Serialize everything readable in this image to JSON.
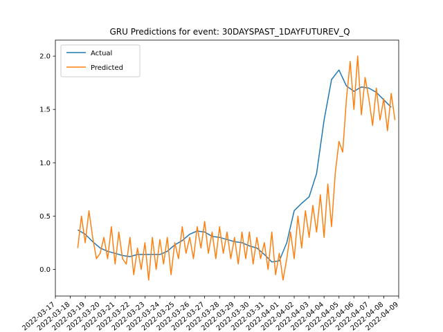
{
  "chart_data": {
    "type": "line",
    "title": "GRU Predictions for event: 30DAYSPAST_1DAYFUTUREV_Q",
    "xlabel": "",
    "ylabel": "",
    "xlim": [
      "2022-03-17T00:00",
      "2022-04-09T00:00"
    ],
    "ylim": [
      -0.25,
      2.15
    ],
    "x_ticks": [
      "2022-03-17",
      "2022-03-18",
      "2022-03-19",
      "2022-03-20",
      "2022-03-21",
      "2022-03-22",
      "2022-03-23",
      "2022-03-24",
      "2022-03-25",
      "2022-03-26",
      "2022-03-27",
      "2022-03-28",
      "2022-03-29",
      "2022-03-30",
      "2022-03-31",
      "2022-04-01",
      "2022-04-02",
      "2022-04-03",
      "2022-04-04",
      "2022-04-05",
      "2022-04-06",
      "2022-04-07",
      "2022-04-08",
      "2022-04-09"
    ],
    "y_ticks": [
      0.0,
      0.5,
      1.0,
      1.5,
      2.0
    ],
    "y_tick_labels": [
      "0.0",
      "0.5",
      "1.0",
      "1.5",
      "2.0"
    ],
    "grid": false,
    "legend": {
      "position": "upper-left",
      "entries": [
        "Actual",
        "Predicted"
      ]
    },
    "colors": {
      "Actual": "#1f77b4",
      "Predicted": "#ff7f0e"
    },
    "series": [
      {
        "name": "Actual",
        "x": [
          "2022-03-18T12:00",
          "2022-03-19T00:00",
          "2022-03-19T12:00",
          "2022-03-20T00:00",
          "2022-03-20T12:00",
          "2022-03-21T00:00",
          "2022-03-21T12:00",
          "2022-03-22T00:00",
          "2022-03-22T12:00",
          "2022-03-23T00:00",
          "2022-03-23T12:00",
          "2022-03-24T00:00",
          "2022-03-24T12:00",
          "2022-03-25T00:00",
          "2022-03-25T12:00",
          "2022-03-26T00:00",
          "2022-03-26T12:00",
          "2022-03-27T00:00",
          "2022-03-27T12:00",
          "2022-03-28T00:00",
          "2022-03-28T12:00",
          "2022-03-29T00:00",
          "2022-03-29T12:00",
          "2022-03-30T00:00",
          "2022-03-30T12:00",
          "2022-03-31T00:00",
          "2022-03-31T12:00",
          "2022-04-01T00:00",
          "2022-04-01T12:00",
          "2022-04-02T00:00",
          "2022-04-02T12:00",
          "2022-04-03T00:00",
          "2022-04-03T12:00",
          "2022-04-04T00:00",
          "2022-04-04T12:00",
          "2022-04-05T00:00",
          "2022-04-05T12:00",
          "2022-04-06T00:00",
          "2022-04-06T12:00",
          "2022-04-07T00:00",
          "2022-04-07T12:00",
          "2022-04-08T00:00",
          "2022-04-08T12:00"
        ],
        "y": [
          0.37,
          0.33,
          0.26,
          0.2,
          0.17,
          0.15,
          0.13,
          0.12,
          0.14,
          0.14,
          0.14,
          0.14,
          0.17,
          0.23,
          0.27,
          0.33,
          0.36,
          0.35,
          0.31,
          0.3,
          0.28,
          0.26,
          0.25,
          0.22,
          0.2,
          0.14,
          0.07,
          0.08,
          0.25,
          0.55,
          0.62,
          0.68,
          0.9,
          1.4,
          1.78,
          1.87,
          1.72,
          1.67,
          1.71,
          1.7,
          1.66,
          1.59,
          1.52
        ]
      },
      {
        "name": "Predicted",
        "x": [
          "2022-03-18T12:00",
          "2022-03-18T18:00",
          "2022-03-19T00:00",
          "2022-03-19T06:00",
          "2022-03-19T12:00",
          "2022-03-19T18:00",
          "2022-03-20T00:00",
          "2022-03-20T06:00",
          "2022-03-20T12:00",
          "2022-03-20T18:00",
          "2022-03-21T00:00",
          "2022-03-21T06:00",
          "2022-03-21T12:00",
          "2022-03-21T18:00",
          "2022-03-22T00:00",
          "2022-03-22T06:00",
          "2022-03-22T12:00",
          "2022-03-22T18:00",
          "2022-03-23T00:00",
          "2022-03-23T06:00",
          "2022-03-23T12:00",
          "2022-03-23T18:00",
          "2022-03-24T00:00",
          "2022-03-24T06:00",
          "2022-03-24T12:00",
          "2022-03-24T18:00",
          "2022-03-25T00:00",
          "2022-03-25T06:00",
          "2022-03-25T12:00",
          "2022-03-25T18:00",
          "2022-03-26T00:00",
          "2022-03-26T06:00",
          "2022-03-26T12:00",
          "2022-03-26T18:00",
          "2022-03-27T00:00",
          "2022-03-27T06:00",
          "2022-03-27T12:00",
          "2022-03-27T18:00",
          "2022-03-28T00:00",
          "2022-03-28T06:00",
          "2022-03-28T12:00",
          "2022-03-28T18:00",
          "2022-03-29T00:00",
          "2022-03-29T06:00",
          "2022-03-29T12:00",
          "2022-03-29T18:00",
          "2022-03-30T00:00",
          "2022-03-30T06:00",
          "2022-03-30T12:00",
          "2022-03-30T18:00",
          "2022-03-31T00:00",
          "2022-03-31T06:00",
          "2022-03-31T12:00",
          "2022-03-31T18:00",
          "2022-04-01T00:00",
          "2022-04-01T06:00",
          "2022-04-01T12:00",
          "2022-04-01T18:00",
          "2022-04-02T00:00",
          "2022-04-02T06:00",
          "2022-04-02T12:00",
          "2022-04-02T18:00",
          "2022-04-03T00:00",
          "2022-04-03T06:00",
          "2022-04-03T12:00",
          "2022-04-03T18:00",
          "2022-04-04T00:00",
          "2022-04-04T06:00",
          "2022-04-04T12:00",
          "2022-04-04T18:00",
          "2022-04-05T00:00",
          "2022-04-05T06:00",
          "2022-04-05T12:00",
          "2022-04-05T18:00",
          "2022-04-06T00:00",
          "2022-04-06T06:00",
          "2022-04-06T12:00",
          "2022-04-06T18:00",
          "2022-04-07T00:00",
          "2022-04-07T06:00",
          "2022-04-07T12:00",
          "2022-04-07T18:00",
          "2022-04-08T00:00",
          "2022-04-08T06:00",
          "2022-04-08T12:00",
          "2022-04-08T18:00"
        ],
        "y": [
          0.2,
          0.5,
          0.25,
          0.55,
          0.3,
          0.1,
          0.15,
          0.3,
          0.1,
          0.4,
          0.05,
          0.35,
          0.1,
          0.05,
          0.3,
          -0.05,
          0.2,
          0.0,
          0.25,
          -0.1,
          0.3,
          0.0,
          0.28,
          0.05,
          0.3,
          -0.05,
          0.25,
          0.1,
          0.4,
          0.15,
          0.3,
          0.1,
          0.4,
          0.2,
          0.45,
          0.15,
          0.35,
          0.1,
          0.4,
          0.15,
          0.35,
          0.1,
          0.3,
          0.05,
          0.35,
          0.1,
          0.35,
          0.05,
          0.3,
          0.1,
          0.25,
          0.0,
          0.35,
          -0.05,
          0.15,
          -0.1,
          0.1,
          0.35,
          0.1,
          0.5,
          0.2,
          0.55,
          0.3,
          0.6,
          0.35,
          0.7,
          0.3,
          0.8,
          0.4,
          0.9,
          1.2,
          1.1,
          1.6,
          1.95,
          1.5,
          2.0,
          1.45,
          1.8,
          1.6,
          1.35,
          1.7,
          1.4,
          1.6,
          1.3,
          1.65,
          1.4
        ]
      }
    ]
  }
}
